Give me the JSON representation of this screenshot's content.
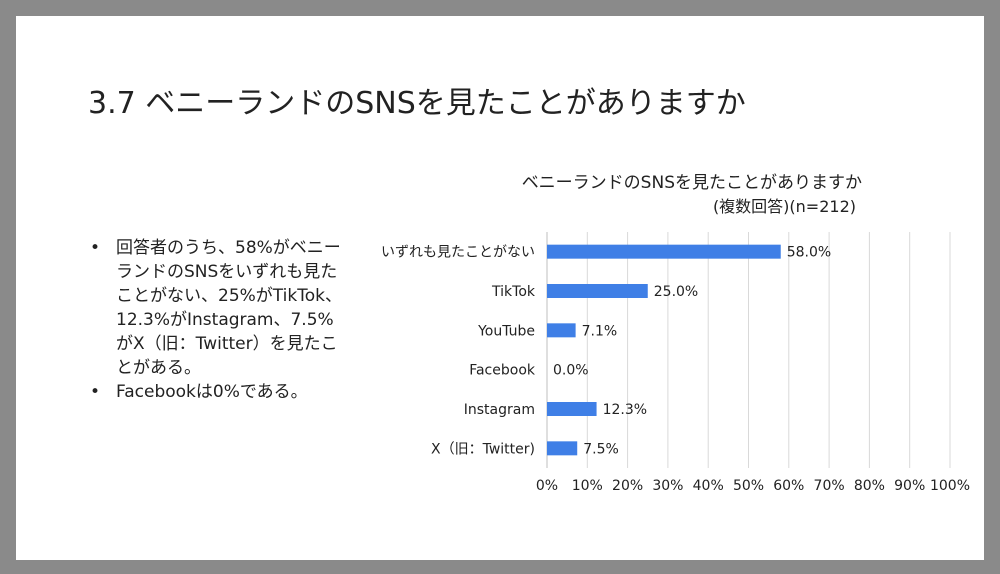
{
  "slide": {
    "title": "3.7 ベニーランドのSNSを見たことがありますか",
    "bullets": [
      "回答者のうち、58%がベニーランドのSNSをいずれも見たことがない、25%がTikTok、12.3%がInstagram、7.5%がⅩ（旧：Twitter）を見たことがある。",
      "Facebookは0%である。"
    ]
  },
  "chart_data": {
    "type": "bar",
    "orientation": "horizontal",
    "title": "ベニーランドのSNSを見たことがありますか",
    "subtitle": "(複数回答)(n=212)",
    "categories": [
      "いずれも見たことがない",
      "TikTok",
      "YouTube",
      "Facebook",
      "Instagram",
      "Ⅹ（旧：Twitter)"
    ],
    "values": [
      58.0,
      25.0,
      7.1,
      0.0,
      12.3,
      7.5
    ],
    "value_labels": [
      "58.0%",
      "25.0%",
      "7.1%",
      "0.0%",
      "12.3%",
      "7.5%"
    ],
    "xlim": [
      0,
      100
    ],
    "xticks": [
      "0%",
      "10%",
      "20%",
      "30%",
      "40%",
      "50%",
      "60%",
      "70%",
      "80%",
      "90%",
      "100%"
    ],
    "grid": true,
    "bar_color": "#3f7fe6",
    "grid_color": "#d9d9d9"
  }
}
